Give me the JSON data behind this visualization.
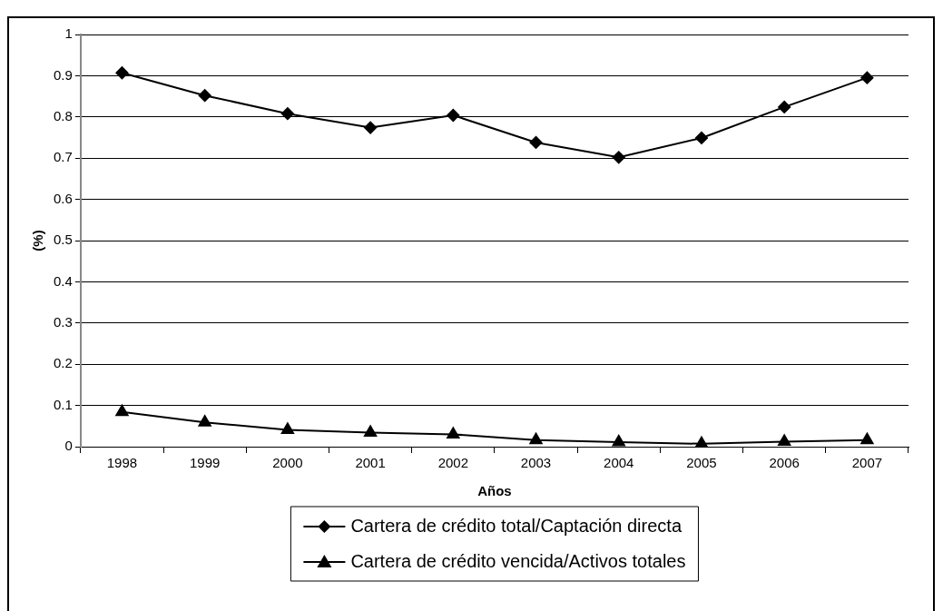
{
  "chart_data": {
    "type": "line",
    "xlabel": "Años",
    "ylabel": "(%)",
    "categories": [
      "1998",
      "1999",
      "2000",
      "2001",
      "2002",
      "2003",
      "2004",
      "2005",
      "2006",
      "2007"
    ],
    "series": [
      {
        "name": "Cartera de crédito total/Captación directa",
        "color": "#000000",
        "marker": "diamond",
        "values": [
          0.907,
          0.852,
          0.808,
          0.774,
          0.804,
          0.738,
          0.702,
          0.749,
          0.824,
          0.895
        ]
      },
      {
        "name": "Cartera de crédito vencida/Activos totales",
        "color": "#000000",
        "marker": "triangle",
        "values": [
          0.084,
          0.059,
          0.041,
          0.034,
          0.03,
          0.016,
          0.011,
          0.007,
          0.012,
          0.016
        ]
      }
    ],
    "ylim": [
      0,
      1
    ],
    "yticks": [
      0,
      0.1,
      0.2,
      0.3,
      0.4,
      0.5,
      0.6,
      0.7,
      0.8,
      0.9,
      1
    ],
    "grid": "y",
    "legend": "bottom",
    "line_style": "solid"
  }
}
